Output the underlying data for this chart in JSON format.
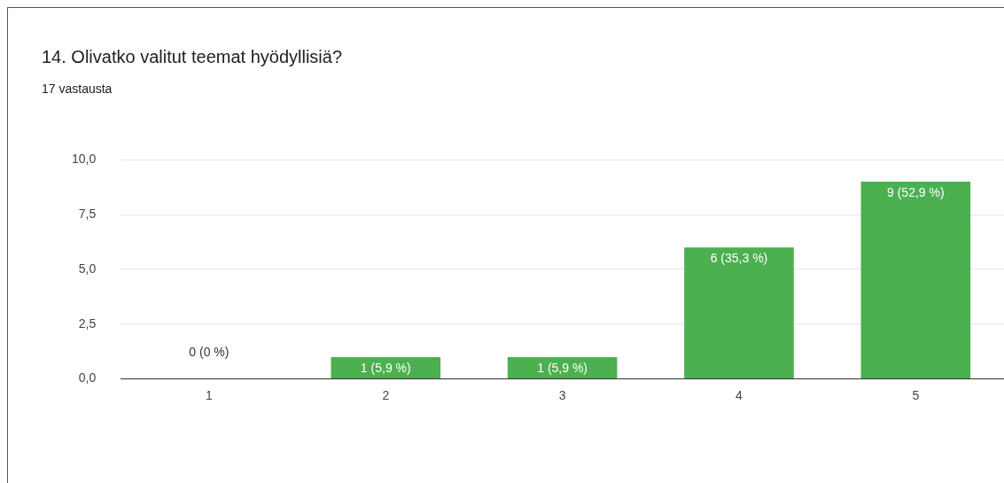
{
  "chart_data": {
    "type": "bar",
    "title": "14. Olivatko valitut teemat hyödyllisiä?",
    "subtitle": "17 vastausta",
    "categories": [
      "1",
      "2",
      "3",
      "4",
      "5"
    ],
    "values": [
      0,
      1,
      1,
      6,
      9
    ],
    "value_labels": [
      "0 (0 %)",
      "1 (5,9 %)",
      "1 (5,9 %)",
      "6 (35,3 %)",
      "9 (52,9 %)"
    ],
    "color": "#4caf50",
    "ylim": [
      0,
      10
    ],
    "yticks": [
      {
        "value": 0,
        "label": "0,0"
      },
      {
        "value": 2.5,
        "label": "2,5"
      },
      {
        "value": 5,
        "label": "5,0"
      },
      {
        "value": 7.5,
        "label": "7,5"
      },
      {
        "value": 10,
        "label": "10,0"
      }
    ],
    "grid": "y",
    "legend": false
  }
}
